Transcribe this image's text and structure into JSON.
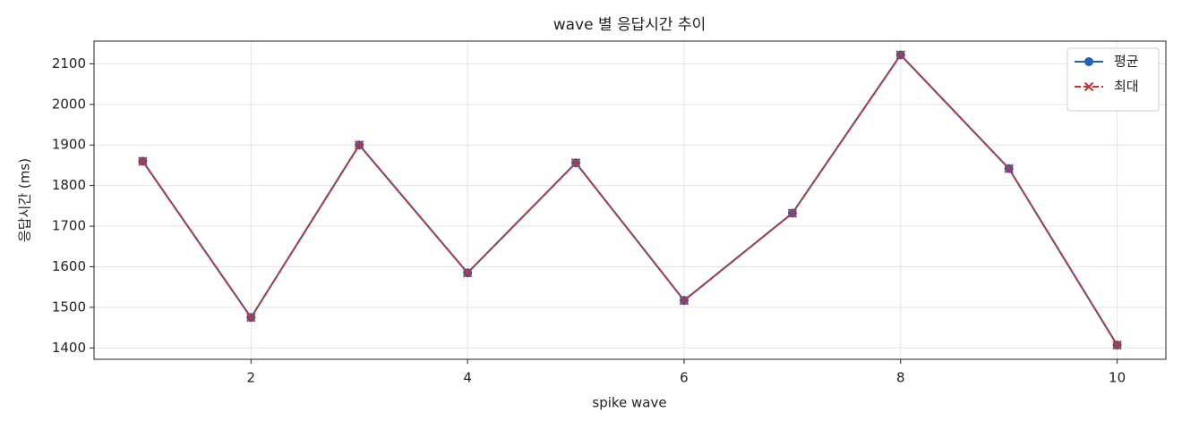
{
  "chart_data": {
    "type": "line",
    "title": "wave 별 응답시간 추이",
    "x_label": "spike wave",
    "y_label": "응답시간 (ms)",
    "x": [
      1,
      2,
      3,
      4,
      5,
      6,
      7,
      8,
      9,
      10
    ],
    "series": [
      {
        "name": "평균",
        "color": "#1f63b8",
        "marker": "o",
        "linestyle": "solid",
        "values": [
          1860,
          1475,
          1900,
          1585,
          1856,
          1517,
          1732,
          2122,
          1842,
          1407
        ]
      },
      {
        "name": "최대",
        "color": "#d03030",
        "marker": "x",
        "linestyle": "dashed",
        "values": [
          1860,
          1475,
          1900,
          1585,
          1856,
          1517,
          1732,
          2122,
          1842,
          1407
        ]
      }
    ],
    "xlim": [
      0.55,
      10.45
    ],
    "xticks": [
      2,
      4,
      6,
      8,
      10
    ],
    "ylim": [
      1372,
      2156
    ],
    "yticks": [
      1400,
      1500,
      1600,
      1700,
      1800,
      1900,
      2000,
      2100
    ],
    "grid": true,
    "legend": "upper right"
  }
}
